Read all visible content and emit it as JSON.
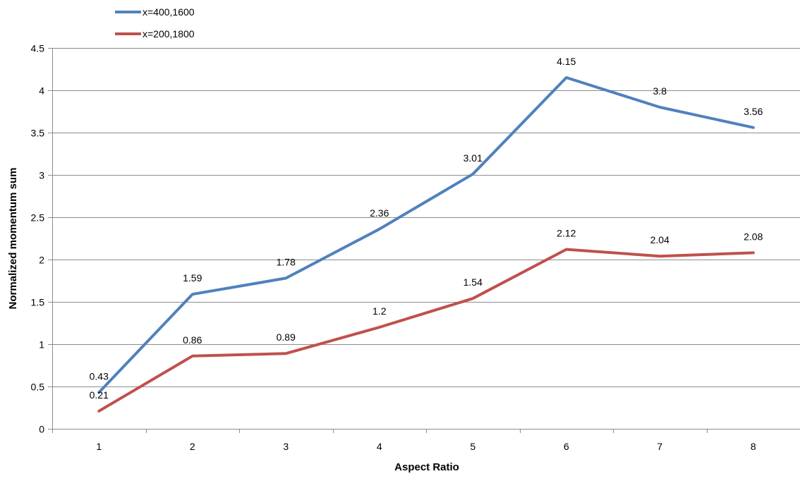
{
  "chart_data": {
    "type": "line",
    "x": [
      1,
      2,
      3,
      4,
      5,
      6,
      7,
      8
    ],
    "series": [
      {
        "name": "x=400,1600",
        "color": "#4F81BD",
        "values": [
          0.43,
          1.59,
          1.78,
          2.36,
          3.01,
          4.15,
          3.8,
          3.56
        ],
        "labels": [
          "0.43",
          "1.59",
          "1.78",
          "2.36",
          "3.01",
          "4.15",
          "3.8",
          "3.56"
        ]
      },
      {
        "name": "x=200,1800",
        "color": "#C0504D",
        "values": [
          0.21,
          0.86,
          0.89,
          1.2,
          1.54,
          2.12,
          2.04,
          2.08
        ],
        "labels": [
          "0.21",
          "0.86",
          "0.89",
          "1.2",
          "1.54",
          "2.12",
          "2.04",
          "2.08"
        ]
      }
    ],
    "xlabel": "Aspect Ratio",
    "ylabel": "Normalized momentum sum",
    "xticks": [
      "1",
      "2",
      "3",
      "4",
      "5",
      "6",
      "7",
      "8"
    ],
    "yticks": [
      "0",
      "0.5",
      "1",
      "1.5",
      "2",
      "2.5",
      "3",
      "3.5",
      "4",
      "4.5"
    ],
    "ylim": [
      0,
      4.5
    ],
    "grid": true,
    "legend_position": "top-left"
  }
}
